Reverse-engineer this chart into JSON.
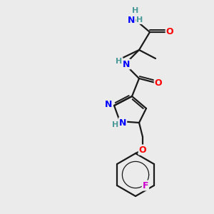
{
  "background_color": "#ebebeb",
  "atom_colors": {
    "C": "#000000",
    "N": "#0000ff",
    "O": "#ff0000",
    "F": "#cc00cc",
    "H": "#4a9a9a"
  },
  "bond_color": "#1a1a1a",
  "figsize": [
    3.0,
    3.0
  ],
  "dpi": 100,
  "lw": 1.6,
  "dlw": 1.4
}
